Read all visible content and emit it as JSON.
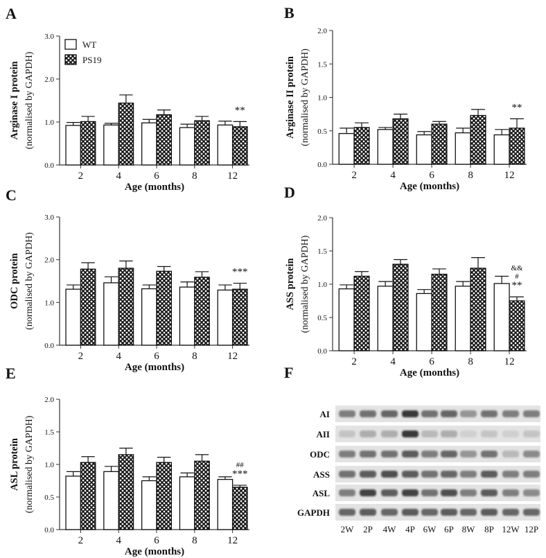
{
  "colors": {
    "wt_fill": "#ffffff",
    "ps19_fill": "#1a1a1a",
    "ink": "#111111"
  },
  "legend": {
    "wt": "WT",
    "ps19": "PS19"
  },
  "chart_data": [
    {
      "panel": "A",
      "type": "bar",
      "ylabel_line1": "Arginase I protein",
      "ylabel_line2": "(normalised by GAPDH)",
      "xlabel": "Age (months)",
      "categories": [
        "2",
        "4",
        "6",
        "8",
        "12"
      ],
      "ylim": [
        0,
        3.0
      ],
      "yticks": [
        "0.0",
        "1.0",
        "2.0",
        "3.0"
      ],
      "series": [
        {
          "name": "WT",
          "values": [
            0.92,
            0.93,
            0.98,
            0.87,
            0.93
          ],
          "errors": [
            0.07,
            0.04,
            0.08,
            0.08,
            0.09
          ]
        },
        {
          "name": "PS19",
          "values": [
            1.01,
            1.44,
            1.17,
            1.03,
            0.89
          ],
          "errors": [
            0.12,
            0.19,
            0.11,
            0.1,
            0.12
          ]
        }
      ],
      "annotations": [
        {
          "category": "12",
          "lines": [
            "**"
          ]
        }
      ]
    },
    {
      "panel": "B",
      "type": "bar",
      "ylabel_line1": "Arginase II protein",
      "ylabel_line2": "(normalised by GAPDH)",
      "xlabel": "Age (months)",
      "categories": [
        "2",
        "4",
        "6",
        "8",
        "12"
      ],
      "ylim": [
        0,
        2.0
      ],
      "yticks": [
        "0.0",
        "0.5",
        "1.0",
        "1.5",
        "2.0"
      ],
      "series": [
        {
          "name": "WT",
          "values": [
            0.46,
            0.52,
            0.44,
            0.47,
            0.44
          ],
          "errors": [
            0.08,
            0.03,
            0.05,
            0.07,
            0.08
          ]
        },
        {
          "name": "PS19",
          "values": [
            0.55,
            0.68,
            0.6,
            0.73,
            0.54
          ],
          "errors": [
            0.07,
            0.07,
            0.04,
            0.09,
            0.14
          ]
        }
      ],
      "annotations": [
        {
          "category": "12",
          "lines": [
            "**"
          ]
        }
      ]
    },
    {
      "panel": "C",
      "type": "bar",
      "ylabel_line1": "ODC protein",
      "ylabel_line2": "(normalised by GAPDH)",
      "xlabel": "Age (months)",
      "categories": [
        "2",
        "4",
        "6",
        "8",
        "12"
      ],
      "ylim": [
        0,
        3.0
      ],
      "yticks": [
        "0.0",
        "1.0",
        "2.0",
        "3.0"
      ],
      "series": [
        {
          "name": "WT",
          "values": [
            1.31,
            1.46,
            1.32,
            1.36,
            1.29
          ],
          "errors": [
            0.1,
            0.14,
            0.09,
            0.12,
            0.12
          ]
        },
        {
          "name": "PS19",
          "values": [
            1.78,
            1.8,
            1.73,
            1.59,
            1.31
          ],
          "errors": [
            0.15,
            0.17,
            0.11,
            0.13,
            0.14
          ]
        }
      ],
      "annotations": [
        {
          "category": "12",
          "lines": [
            "***"
          ]
        }
      ]
    },
    {
      "panel": "D",
      "type": "bar",
      "ylabel_line1": "ASS protein",
      "ylabel_line2": "(normalised by GAPDH)",
      "xlabel": "Age (months)",
      "categories": [
        "2",
        "4",
        "6",
        "8",
        "12"
      ],
      "ylim": [
        0,
        2.0
      ],
      "yticks": [
        "0.0",
        "0.5",
        "1.0",
        "1.5",
        "2.0"
      ],
      "series": [
        {
          "name": "WT",
          "values": [
            0.93,
            0.97,
            0.86,
            0.97,
            1.01
          ],
          "errors": [
            0.06,
            0.07,
            0.06,
            0.07,
            0.11
          ]
        },
        {
          "name": "PS19",
          "values": [
            1.12,
            1.3,
            1.15,
            1.24,
            0.75
          ],
          "errors": [
            0.07,
            0.07,
            0.08,
            0.16,
            0.06
          ]
        }
      ],
      "annotations": [
        {
          "category": "12",
          "lines": [
            "&&",
            "#",
            "**"
          ]
        }
      ]
    },
    {
      "panel": "E",
      "type": "bar",
      "ylabel_line1": "ASL protein",
      "ylabel_line2": "(normalised by GAPDH)",
      "xlabel": "Age (months)",
      "categories": [
        "2",
        "4",
        "6",
        "8",
        "12"
      ],
      "ylim": [
        0,
        2.0
      ],
      "yticks": [
        "0.0",
        "0.5",
        "1.0",
        "1.5",
        "2.0"
      ],
      "series": [
        {
          "name": "WT",
          "values": [
            0.82,
            0.89,
            0.75,
            0.81,
            0.77
          ],
          "errors": [
            0.07,
            0.08,
            0.06,
            0.06,
            0.04
          ]
        },
        {
          "name": "PS19",
          "values": [
            1.03,
            1.15,
            1.03,
            1.05,
            0.65
          ],
          "errors": [
            0.09,
            0.1,
            0.08,
            0.1,
            0.03
          ]
        }
      ],
      "annotations": [
        {
          "category": "12",
          "lines": [
            "##",
            "***"
          ]
        }
      ]
    }
  ],
  "blot": {
    "panel": "F",
    "rows": [
      "AI",
      "AII",
      "ODC",
      "ASS",
      "ASL",
      "GAPDH"
    ],
    "lanes": [
      "2W",
      "2P",
      "4W",
      "4P",
      "6W",
      "6P",
      "8W",
      "8P",
      "12W",
      "12P"
    ]
  }
}
